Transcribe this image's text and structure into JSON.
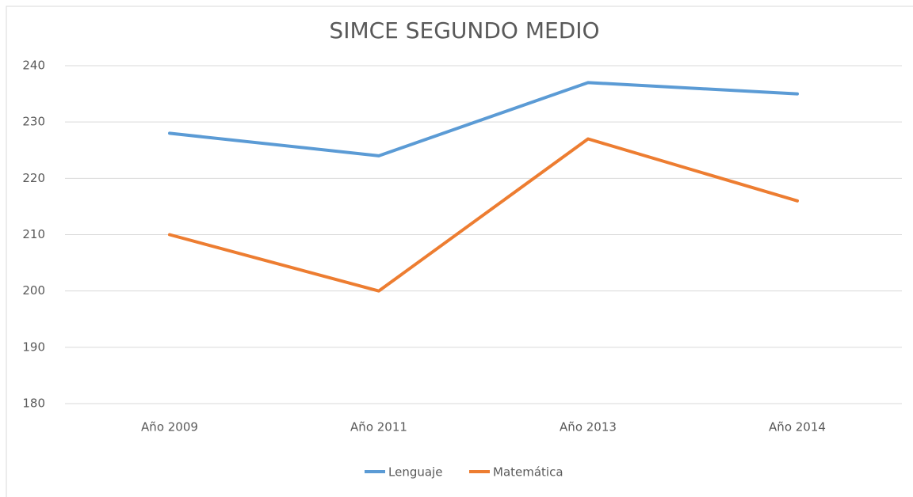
{
  "chart_data": {
    "type": "line",
    "title": "SIMCE SEGUNDO MEDIO",
    "categories": [
      "Año 2009",
      "Año 2011",
      "Año 2013",
      "Año 2014"
    ],
    "series": [
      {
        "name": "Lenguaje",
        "color": "#5b9bd5",
        "values": [
          228,
          224,
          237,
          235
        ]
      },
      {
        "name": "Matemática",
        "color": "#ed7d31",
        "values": [
          210,
          200,
          227,
          216
        ]
      }
    ],
    "ylim": [
      180,
      240
    ],
    "yticks": [
      180,
      190,
      200,
      210,
      220,
      230,
      240
    ],
    "grid": true,
    "legend": "bottom"
  }
}
